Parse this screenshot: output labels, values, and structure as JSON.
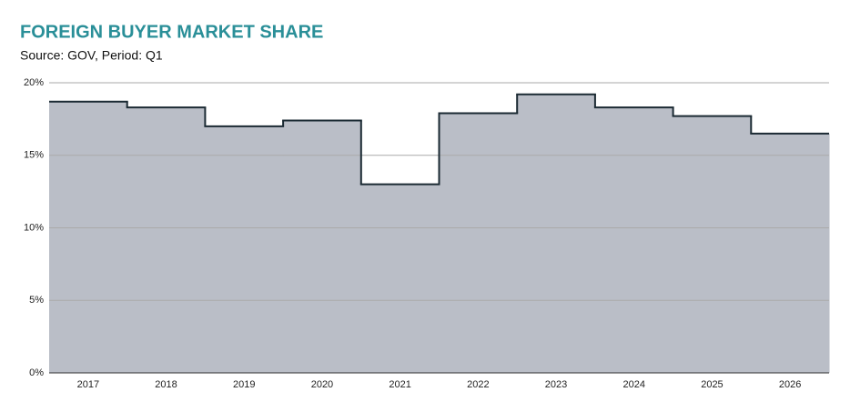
{
  "chart_data": {
    "type": "step-area",
    "title": "FOREIGN BUYER MARKET SHARE",
    "subtitle": "Source: GOV, Period: Q1",
    "categories": [
      "2017",
      "2018",
      "2019",
      "2020",
      "2021",
      "2022",
      "2023",
      "2024",
      "2025",
      "2026"
    ],
    "values": [
      18.7,
      18.3,
      17.0,
      17.4,
      13.0,
      17.9,
      19.2,
      18.3,
      17.7,
      16.5
    ],
    "color": "#babec7",
    "line_color": "#1b2a33",
    "ylim": [
      0,
      20
    ],
    "yticks": [
      {
        "value": 0,
        "label": "0%"
      },
      {
        "value": 5,
        "label": "5%"
      },
      {
        "value": 10,
        "label": "10%"
      },
      {
        "value": 15,
        "label": "15%"
      },
      {
        "value": 20,
        "label": "20%"
      }
    ],
    "grid": true
  }
}
